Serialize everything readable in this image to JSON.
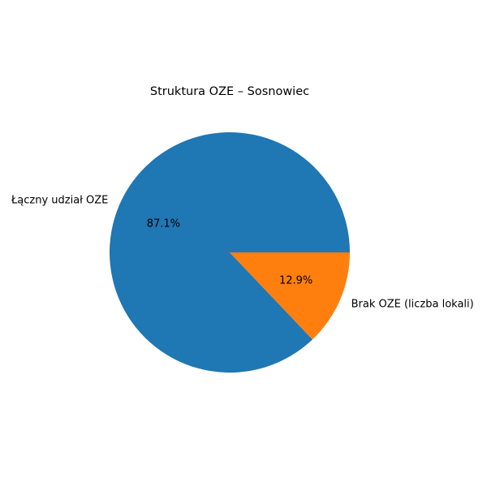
{
  "chart_data": {
    "type": "pie",
    "title": "Struktura OZE – Sosnowiec",
    "categories": [
      "Łączny udział OZE",
      "Brak OZE (liczba lokali)"
    ],
    "values": [
      87.1,
      12.9
    ],
    "percent_labels": [
      "87.1%",
      "12.9%"
    ],
    "colors": [
      "#1f77b4",
      "#ff7f0e"
    ],
    "start_angle_deg": 0,
    "direction": "counterclockwise",
    "legend": "none"
  }
}
